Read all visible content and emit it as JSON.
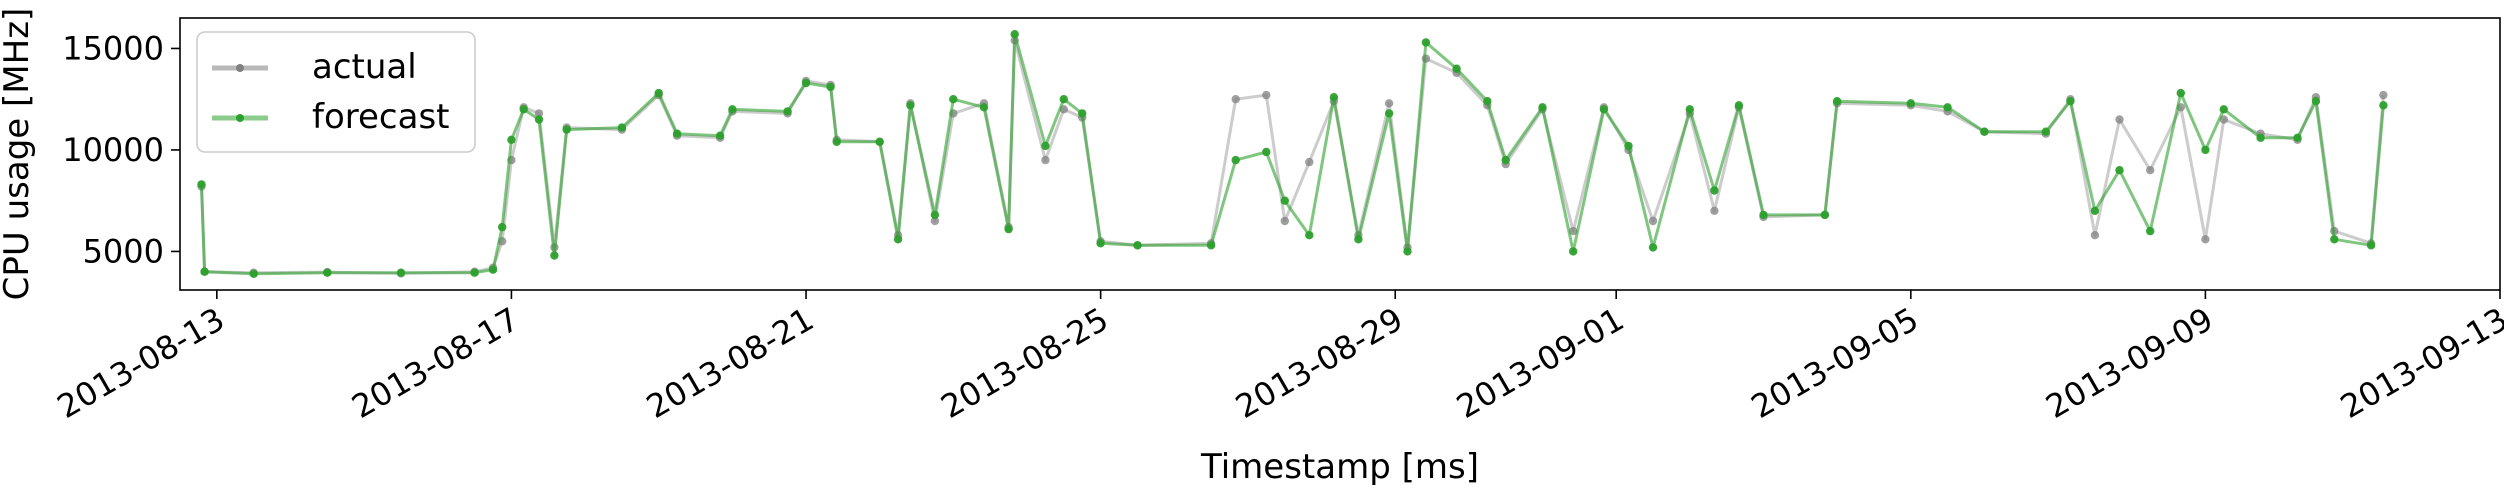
{
  "chart_data": {
    "type": "line",
    "title": "",
    "xlabel": "Timestamp [ms]",
    "ylabel": "CPU usage [MHz]",
    "xlim": [
      "2013-08-12T12:00",
      "2013-09-13T00:00"
    ],
    "ylim": [
      3100,
      16500
    ],
    "x_ticks": [
      "2013-08-13",
      "2013-08-17",
      "2013-08-21",
      "2013-08-25",
      "2013-08-29",
      "2013-09-01",
      "2013-09-05",
      "2013-09-09",
      "2013-09-13"
    ],
    "y_ticks": [
      5000,
      10000,
      15000
    ],
    "y_tick_labels": [
      "5000",
      "10000",
      "15000"
    ],
    "grid": false,
    "legend": {
      "placement": "top-left",
      "entries": [
        "actual",
        "forecast"
      ]
    },
    "colors": {
      "actual": "#808080",
      "forecast": "#2ca02c"
    },
    "series": [
      {
        "name": "actual",
        "color": "#808080",
        "points": [
          [
            "2013-08-12T19:00",
            8200
          ],
          [
            "2013-08-12T20:00",
            4000
          ],
          [
            "2013-08-13T12:00",
            3950
          ],
          [
            "2013-08-14T12:00",
            3980
          ],
          [
            "2013-08-15T12:00",
            3920
          ],
          [
            "2013-08-16T12:00",
            4000
          ],
          [
            "2013-08-16T18:00",
            4200
          ],
          [
            "2013-08-16T21:00",
            5500
          ],
          [
            "2013-08-17T00:00",
            9500
          ],
          [
            "2013-08-17T04:00",
            12100
          ],
          [
            "2013-08-17T09:00",
            11800
          ],
          [
            "2013-08-17T14:00",
            5200
          ],
          [
            "2013-08-17T18:00",
            11100
          ],
          [
            "2013-08-18T12:00",
            11000
          ],
          [
            "2013-08-19T00:00",
            12700
          ],
          [
            "2013-08-19T06:00",
            10700
          ],
          [
            "2013-08-19T20:00",
            10600
          ],
          [
            "2013-08-20T00:00",
            11900
          ],
          [
            "2013-08-20T18:00",
            11800
          ],
          [
            "2013-08-21T00:00",
            13400
          ],
          [
            "2013-08-21T08:00",
            13200
          ],
          [
            "2013-08-21T10:00",
            10500
          ],
          [
            "2013-08-22T00:00",
            10400
          ],
          [
            "2013-08-22T06:00",
            5800
          ],
          [
            "2013-08-22T10:00",
            12300
          ],
          [
            "2013-08-22T18:00",
            6500
          ],
          [
            "2013-08-23T00:00",
            11800
          ],
          [
            "2013-08-23T10:00",
            12300
          ],
          [
            "2013-08-23T18:00",
            6200
          ],
          [
            "2013-08-23T20:00",
            15400
          ],
          [
            "2013-08-24T06:00",
            9500
          ],
          [
            "2013-08-24T12:00",
            12000
          ],
          [
            "2013-08-24T18:00",
            11600
          ],
          [
            "2013-08-25T00:00",
            5500
          ],
          [
            "2013-08-25T12:00",
            5300
          ],
          [
            "2013-08-26T12:00",
            5400
          ],
          [
            "2013-08-26T20:00",
            12500
          ],
          [
            "2013-08-27T06:00",
            12700
          ],
          [
            "2013-08-27T12:00",
            6500
          ],
          [
            "2013-08-27T20:00",
            9400
          ],
          [
            "2013-08-28T04:00",
            12400
          ],
          [
            "2013-08-28T12:00",
            5800
          ],
          [
            "2013-08-28T22:00",
            12300
          ],
          [
            "2013-08-29T04:00",
            5200
          ],
          [
            "2013-08-29T10:00",
            14500
          ],
          [
            "2013-08-29T20:00",
            13800
          ],
          [
            "2013-08-30T06:00",
            12200
          ],
          [
            "2013-08-30T12:00",
            9300
          ],
          [
            "2013-08-31T00:00",
            12000
          ],
          [
            "2013-08-31T10:00",
            6000
          ],
          [
            "2013-08-31T20:00",
            12100
          ],
          [
            "2013-09-01T04:00",
            10000
          ],
          [
            "2013-09-01T12:00",
            6500
          ],
          [
            "2013-09-02T00:00",
            11800
          ],
          [
            "2013-09-02T08:00",
            7000
          ],
          [
            "2013-09-02T16:00",
            12100
          ],
          [
            "2013-09-03T00:00",
            6700
          ],
          [
            "2013-09-03T20:00",
            6800
          ],
          [
            "2013-09-04T00:00",
            12300
          ],
          [
            "2013-09-05T00:00",
            12200
          ],
          [
            "2013-09-05T12:00",
            11900
          ],
          [
            "2013-09-06T00:00",
            10900
          ],
          [
            "2013-09-06T20:00",
            10800
          ],
          [
            "2013-09-07T04:00",
            12500
          ],
          [
            "2013-09-07T12:00",
            5800
          ],
          [
            "2013-09-07T20:00",
            11500
          ],
          [
            "2013-09-08T06:00",
            9000
          ],
          [
            "2013-09-08T16:00",
            12100
          ],
          [
            "2013-09-09T00:00",
            5600
          ],
          [
            "2013-09-09T06:00",
            11500
          ],
          [
            "2013-09-09T18:00",
            10800
          ],
          [
            "2013-09-10T06:00",
            10500
          ],
          [
            "2013-09-10T12:00",
            12600
          ],
          [
            "2013-09-10T18:00",
            6000
          ],
          [
            "2013-09-11T06:00",
            5400
          ],
          [
            "2013-09-11T10:00",
            12700
          ]
        ]
      },
      {
        "name": "forecast",
        "color": "#2ca02c",
        "points": [
          [
            "2013-08-12T19:00",
            8300
          ],
          [
            "2013-08-12T20:00",
            4000
          ],
          [
            "2013-08-13T12:00",
            3900
          ],
          [
            "2013-08-14T12:00",
            3950
          ],
          [
            "2013-08-15T12:00",
            3950
          ],
          [
            "2013-08-16T12:00",
            3950
          ],
          [
            "2013-08-16T18:00",
            4100
          ],
          [
            "2013-08-16T21:00",
            6200
          ],
          [
            "2013-08-17T00:00",
            10500
          ],
          [
            "2013-08-17T04:00",
            12000
          ],
          [
            "2013-08-17T09:00",
            11500
          ],
          [
            "2013-08-17T14:00",
            4800
          ],
          [
            "2013-08-17T18:00",
            11000
          ],
          [
            "2013-08-18T12:00",
            11100
          ],
          [
            "2013-08-19T00:00",
            12800
          ],
          [
            "2013-08-19T06:00",
            10800
          ],
          [
            "2013-08-19T20:00",
            10700
          ],
          [
            "2013-08-20T00:00",
            12000
          ],
          [
            "2013-08-20T18:00",
            11900
          ],
          [
            "2013-08-21T00:00",
            13300
          ],
          [
            "2013-08-21T08:00",
            13100
          ],
          [
            "2013-08-21T10:00",
            10400
          ],
          [
            "2013-08-22T00:00",
            10400
          ],
          [
            "2013-08-22T06:00",
            5600
          ],
          [
            "2013-08-22T10:00",
            12200
          ],
          [
            "2013-08-22T18:00",
            6800
          ],
          [
            "2013-08-23T00:00",
            12500
          ],
          [
            "2013-08-23T10:00",
            12100
          ],
          [
            "2013-08-23T18:00",
            6100
          ],
          [
            "2013-08-23T20:00",
            15700
          ],
          [
            "2013-08-24T06:00",
            10200
          ],
          [
            "2013-08-24T12:00",
            12500
          ],
          [
            "2013-08-24T18:00",
            11800
          ],
          [
            "2013-08-25T00:00",
            5400
          ],
          [
            "2013-08-25T12:00",
            5300
          ],
          [
            "2013-08-26T12:00",
            5300
          ],
          [
            "2013-08-26T20:00",
            9500
          ],
          [
            "2013-08-27T06:00",
            9900
          ],
          [
            "2013-08-27T12:00",
            7500
          ],
          [
            "2013-08-27T20:00",
            5800
          ],
          [
            "2013-08-28T04:00",
            12600
          ],
          [
            "2013-08-28T12:00",
            5600
          ],
          [
            "2013-08-28T22:00",
            11800
          ],
          [
            "2013-08-29T04:00",
            5000
          ],
          [
            "2013-08-29T10:00",
            15300
          ],
          [
            "2013-08-29T20:00",
            14000
          ],
          [
            "2013-08-30T06:00",
            12400
          ],
          [
            "2013-08-30T12:00",
            9500
          ],
          [
            "2013-08-31T00:00",
            12100
          ],
          [
            "2013-08-31T10:00",
            5000
          ],
          [
            "2013-08-31T20:00",
            12000
          ],
          [
            "2013-09-01T04:00",
            10200
          ],
          [
            "2013-09-01T12:00",
            5200
          ],
          [
            "2013-09-02T00:00",
            12000
          ],
          [
            "2013-09-02T08:00",
            8000
          ],
          [
            "2013-09-02T16:00",
            12200
          ],
          [
            "2013-09-03T00:00",
            6800
          ],
          [
            "2013-09-03T20:00",
            6800
          ],
          [
            "2013-09-04T00:00",
            12400
          ],
          [
            "2013-09-05T00:00",
            12300
          ],
          [
            "2013-09-05T12:00",
            12100
          ],
          [
            "2013-09-06T00:00",
            10900
          ],
          [
            "2013-09-06T20:00",
            10900
          ],
          [
            "2013-09-07T04:00",
            12400
          ],
          [
            "2013-09-07T12:00",
            7000
          ],
          [
            "2013-09-07T20:00",
            9000
          ],
          [
            "2013-09-08T06:00",
            6000
          ],
          [
            "2013-09-08T16:00",
            12800
          ],
          [
            "2013-09-09T00:00",
            10000
          ],
          [
            "2013-09-09T06:00",
            12000
          ],
          [
            "2013-09-09T18:00",
            10600
          ],
          [
            "2013-09-10T06:00",
            10600
          ],
          [
            "2013-09-10T12:00",
            12400
          ],
          [
            "2013-09-10T18:00",
            5600
          ],
          [
            "2013-09-11T06:00",
            5300
          ],
          [
            "2013-09-11T10:00",
            12200
          ]
        ]
      }
    ]
  }
}
